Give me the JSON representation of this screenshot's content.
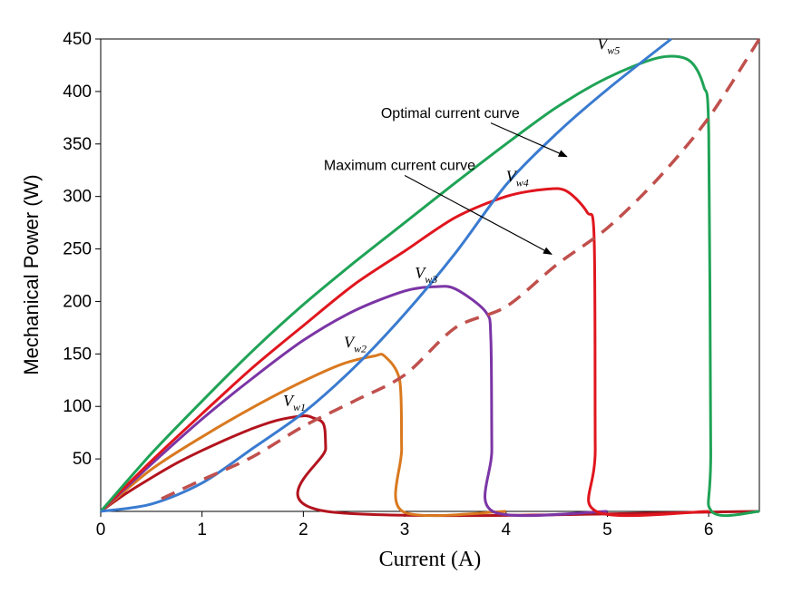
{
  "chart_data": {
    "type": "line",
    "title": "",
    "xlabel": "Current (A)",
    "ylabel": "Mechanical Power (W)",
    "xlim": [
      0,
      6.5
    ],
    "ylim": [
      0,
      450
    ],
    "x_ticks": [
      0,
      1,
      2,
      3,
      4,
      5,
      6
    ],
    "y_ticks": [
      50,
      100,
      150,
      200,
      250,
      300,
      350,
      400,
      450
    ],
    "grid": false,
    "legend": "none",
    "series": [
      {
        "name": "Vw1",
        "color": "#b3141e",
        "points": [
          [
            0,
            0
          ],
          [
            0.25,
            17
          ],
          [
            0.5,
            32
          ],
          [
            0.75,
            46
          ],
          [
            1.0,
            58
          ],
          [
            1.25,
            69
          ],
          [
            1.5,
            79
          ],
          [
            1.75,
            87
          ],
          [
            2.0,
            91
          ],
          [
            2.1,
            89
          ],
          [
            2.2,
            83
          ],
          [
            2.22,
            60
          ],
          [
            2.23,
            0
          ],
          [
            6.5,
            0
          ]
        ]
      },
      {
        "name": "Vw2",
        "color": "#d9791f",
        "points": [
          [
            0,
            0
          ],
          [
            0.5,
            40
          ],
          [
            1.0,
            71
          ],
          [
            1.5,
            99
          ],
          [
            2.0,
            124
          ],
          [
            2.4,
            141
          ],
          [
            2.7,
            148
          ],
          [
            2.8,
            148
          ],
          [
            2.95,
            125
          ],
          [
            2.97,
            60
          ],
          [
            2.98,
            0
          ],
          [
            4.0,
            0
          ]
        ]
      },
      {
        "name": "Vw3",
        "color": "#7b35a5",
        "points": [
          [
            0,
            0
          ],
          [
            0.5,
            45
          ],
          [
            1.0,
            88
          ],
          [
            1.5,
            127
          ],
          [
            2.0,
            163
          ],
          [
            2.5,
            191
          ],
          [
            3.0,
            210
          ],
          [
            3.3,
            214
          ],
          [
            3.5,
            212
          ],
          [
            3.8,
            190
          ],
          [
            3.85,
            165
          ],
          [
            3.86,
            60
          ],
          [
            3.87,
            0
          ],
          [
            5.0,
            0
          ]
        ]
      },
      {
        "name": "Vw4",
        "color": "#e0161e",
        "points": [
          [
            0,
            0
          ],
          [
            0.5,
            48
          ],
          [
            1.0,
            93
          ],
          [
            1.5,
            137
          ],
          [
            2.0,
            177
          ],
          [
            2.5,
            216
          ],
          [
            3.0,
            248
          ],
          [
            3.5,
            280
          ],
          [
            4.0,
            300
          ],
          [
            4.4,
            307
          ],
          [
            4.6,
            305
          ],
          [
            4.8,
            285
          ],
          [
            4.87,
            260
          ],
          [
            4.88,
            60
          ],
          [
            4.89,
            0
          ],
          [
            6.0,
            0
          ]
        ]
      },
      {
        "name": "Vw5",
        "color": "#1fa356",
        "points": [
          [
            0,
            0
          ],
          [
            0.5,
            55
          ],
          [
            1.0,
            105
          ],
          [
            1.5,
            153
          ],
          [
            2.0,
            197
          ],
          [
            2.5,
            237
          ],
          [
            3.0,
            275
          ],
          [
            3.5,
            313
          ],
          [
            4.0,
            350
          ],
          [
            4.5,
            385
          ],
          [
            5.0,
            413
          ],
          [
            5.5,
            432
          ],
          [
            5.8,
            430
          ],
          [
            5.95,
            405
          ],
          [
            6.0,
            360
          ],
          [
            6.02,
            60
          ],
          [
            6.03,
            0
          ],
          [
            6.5,
            0
          ]
        ]
      },
      {
        "name": "Optimal current curve",
        "color": "#3a7bd0",
        "points": [
          [
            0,
            0
          ],
          [
            0.5,
            7
          ],
          [
            1.0,
            27
          ],
          [
            1.5,
            60
          ],
          [
            2.0,
            94
          ],
          [
            2.5,
            137
          ],
          [
            3.0,
            188
          ],
          [
            3.5,
            246
          ],
          [
            4.0,
            311
          ],
          [
            4.5,
            360
          ],
          [
            5.0,
            402
          ],
          [
            5.63,
            450
          ]
        ]
      },
      {
        "name": "Maximum current curve",
        "color": "#c0504d",
        "dashed": true,
        "points": [
          [
            0.6,
            12
          ],
          [
            1.0,
            30
          ],
          [
            1.5,
            52
          ],
          [
            2.0,
            81
          ],
          [
            2.5,
            105
          ],
          [
            3.0,
            130
          ],
          [
            3.5,
            175
          ],
          [
            4.0,
            195
          ],
          [
            4.5,
            235
          ],
          [
            5.0,
            270
          ],
          [
            5.5,
            317
          ],
          [
            6.0,
            375
          ],
          [
            6.5,
            450
          ]
        ]
      }
    ],
    "annotations": [
      {
        "text": "Optimal current curve",
        "text_at": [
          3.45,
          375
        ],
        "arrow_from": [
          3.85,
          370
        ],
        "arrow_to": [
          4.6,
          338
        ]
      },
      {
        "text": "Maximum current curve",
        "text_at": [
          2.95,
          325
        ],
        "arrow_from": [
          3.0,
          320
        ],
        "arrow_to": [
          4.45,
          245
        ]
      }
    ],
    "curve_labels": [
      {
        "base": "V",
        "sub": "w1",
        "at": [
          1.8,
          100
        ]
      },
      {
        "base": "V",
        "sub": "w2",
        "at": [
          2.4,
          156
        ]
      },
      {
        "base": "V",
        "sub": "w3",
        "at": [
          3.1,
          222
        ]
      },
      {
        "base": "V",
        "sub": "w4",
        "at": [
          4.0,
          314
        ]
      },
      {
        "base": "V",
        "sub": "w5",
        "at": [
          4.9,
          440
        ]
      }
    ]
  }
}
